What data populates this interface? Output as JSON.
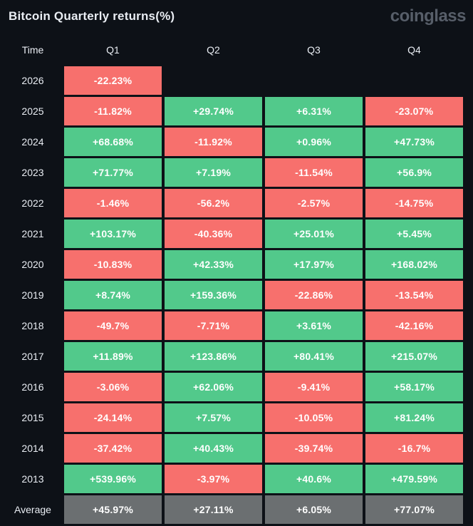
{
  "header": {
    "title": "Bitcoin Quarterly returns(%)",
    "logo_text": "coinglass"
  },
  "table": {
    "columns": [
      "Time",
      "Q1",
      "Q2",
      "Q3",
      "Q4"
    ],
    "rows": [
      {
        "label": "2026",
        "cells": [
          {
            "value": "-22.23%",
            "type": "neg"
          },
          null,
          null,
          null
        ]
      },
      {
        "label": "2025",
        "cells": [
          {
            "value": "-11.82%",
            "type": "neg"
          },
          {
            "value": "+29.74%",
            "type": "pos"
          },
          {
            "value": "+6.31%",
            "type": "pos"
          },
          {
            "value": "-23.07%",
            "type": "neg"
          }
        ]
      },
      {
        "label": "2024",
        "cells": [
          {
            "value": "+68.68%",
            "type": "pos"
          },
          {
            "value": "-11.92%",
            "type": "neg"
          },
          {
            "value": "+0.96%",
            "type": "pos"
          },
          {
            "value": "+47.73%",
            "type": "pos"
          }
        ]
      },
      {
        "label": "2023",
        "cells": [
          {
            "value": "+71.77%",
            "type": "pos"
          },
          {
            "value": "+7.19%",
            "type": "pos"
          },
          {
            "value": "-11.54%",
            "type": "neg"
          },
          {
            "value": "+56.9%",
            "type": "pos"
          }
        ]
      },
      {
        "label": "2022",
        "cells": [
          {
            "value": "-1.46%",
            "type": "neg"
          },
          {
            "value": "-56.2%",
            "type": "neg"
          },
          {
            "value": "-2.57%",
            "type": "neg"
          },
          {
            "value": "-14.75%",
            "type": "neg"
          }
        ]
      },
      {
        "label": "2021",
        "cells": [
          {
            "value": "+103.17%",
            "type": "pos"
          },
          {
            "value": "-40.36%",
            "type": "neg"
          },
          {
            "value": "+25.01%",
            "type": "pos"
          },
          {
            "value": "+5.45%",
            "type": "pos"
          }
        ]
      },
      {
        "label": "2020",
        "cells": [
          {
            "value": "-10.83%",
            "type": "neg"
          },
          {
            "value": "+42.33%",
            "type": "pos"
          },
          {
            "value": "+17.97%",
            "type": "pos"
          },
          {
            "value": "+168.02%",
            "type": "pos"
          }
        ]
      },
      {
        "label": "2019",
        "cells": [
          {
            "value": "+8.74%",
            "type": "pos"
          },
          {
            "value": "+159.36%",
            "type": "pos"
          },
          {
            "value": "-22.86%",
            "type": "neg"
          },
          {
            "value": "-13.54%",
            "type": "neg"
          }
        ]
      },
      {
        "label": "2018",
        "cells": [
          {
            "value": "-49.7%",
            "type": "neg"
          },
          {
            "value": "-7.71%",
            "type": "neg"
          },
          {
            "value": "+3.61%",
            "type": "pos"
          },
          {
            "value": "-42.16%",
            "type": "neg"
          }
        ]
      },
      {
        "label": "2017",
        "cells": [
          {
            "value": "+11.89%",
            "type": "pos"
          },
          {
            "value": "+123.86%",
            "type": "pos"
          },
          {
            "value": "+80.41%",
            "type": "pos"
          },
          {
            "value": "+215.07%",
            "type": "pos"
          }
        ]
      },
      {
        "label": "2016",
        "cells": [
          {
            "value": "-3.06%",
            "type": "neg"
          },
          {
            "value": "+62.06%",
            "type": "pos"
          },
          {
            "value": "-9.41%",
            "type": "neg"
          },
          {
            "value": "+58.17%",
            "type": "pos"
          }
        ]
      },
      {
        "label": "2015",
        "cells": [
          {
            "value": "-24.14%",
            "type": "neg"
          },
          {
            "value": "+7.57%",
            "type": "pos"
          },
          {
            "value": "-10.05%",
            "type": "neg"
          },
          {
            "value": "+81.24%",
            "type": "pos"
          }
        ]
      },
      {
        "label": "2014",
        "cells": [
          {
            "value": "-37.42%",
            "type": "neg"
          },
          {
            "value": "+40.43%",
            "type": "pos"
          },
          {
            "value": "-39.74%",
            "type": "neg"
          },
          {
            "value": "-16.7%",
            "type": "neg"
          }
        ]
      },
      {
        "label": "2013",
        "cells": [
          {
            "value": "+539.96%",
            "type": "pos"
          },
          {
            "value": "-3.97%",
            "type": "neg"
          },
          {
            "value": "+40.6%",
            "type": "pos"
          },
          {
            "value": "+479.59%",
            "type": "pos"
          }
        ]
      },
      {
        "label": "Average",
        "cells": [
          {
            "value": "+45.97%",
            "type": "avg"
          },
          {
            "value": "+27.11%",
            "type": "avg"
          },
          {
            "value": "+6.05%",
            "type": "avg"
          },
          {
            "value": "+77.07%",
            "type": "avg"
          }
        ]
      }
    ]
  },
  "chart_data": {
    "type": "heatmap",
    "title": "Bitcoin Quarterly returns(%)",
    "columns": [
      "Q1",
      "Q2",
      "Q3",
      "Q4"
    ],
    "rows": [
      "2026",
      "2025",
      "2024",
      "2023",
      "2022",
      "2021",
      "2020",
      "2019",
      "2018",
      "2017",
      "2016",
      "2015",
      "2014",
      "2013",
      "Average"
    ],
    "values": [
      [
        -22.23,
        null,
        null,
        null
      ],
      [
        -11.82,
        29.74,
        6.31,
        -23.07
      ],
      [
        68.68,
        -11.92,
        0.96,
        47.73
      ],
      [
        71.77,
        7.19,
        -11.54,
        56.9
      ],
      [
        -1.46,
        -56.2,
        -2.57,
        -14.75
      ],
      [
        103.17,
        -40.36,
        25.01,
        5.45
      ],
      [
        -10.83,
        42.33,
        17.97,
        168.02
      ],
      [
        8.74,
        159.36,
        -22.86,
        -13.54
      ],
      [
        -49.7,
        -7.71,
        3.61,
        -42.16
      ],
      [
        11.89,
        123.86,
        80.41,
        215.07
      ],
      [
        -3.06,
        62.06,
        -9.41,
        58.17
      ],
      [
        -24.14,
        7.57,
        -10.05,
        81.24
      ],
      [
        -37.42,
        40.43,
        -39.74,
        -16.7
      ],
      [
        539.96,
        -3.97,
        40.6,
        479.59
      ],
      [
        45.97,
        27.11,
        6.05,
        77.07
      ]
    ],
    "legend_position": "none",
    "grid": false,
    "color_rule": "positive=green, negative=red, Average row=gray, empty=background"
  },
  "colors": {
    "positive": "#52c98b",
    "negative": "#f7706d",
    "average": "#6b6f71",
    "background": "#0d1117",
    "text": "#e9edf3",
    "cell_text": "#ffffff",
    "logo": "#575e69"
  }
}
